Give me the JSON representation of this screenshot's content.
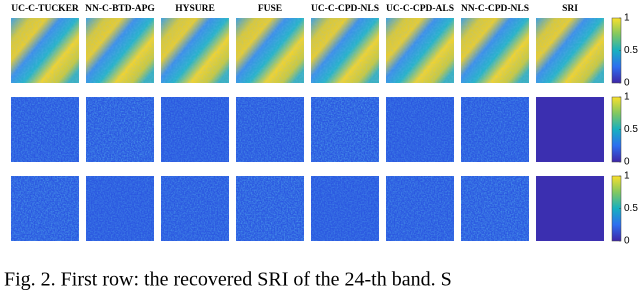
{
  "figure": {
    "column_titles": [
      "UC-C-TUCKER",
      "NN-C-BTD-APG",
      "HYSURE",
      "FUSE",
      "UC-C-CPD-NLS",
      "UC-C-CPD-ALS",
      "NN-C-CPD-NLS",
      "SRI"
    ],
    "colorbar_ticks": [
      "1",
      "0.5",
      "0"
    ],
    "caption": "Fig. 2.  First row: the recovered SRI of the 24-th band. S"
  }
}
